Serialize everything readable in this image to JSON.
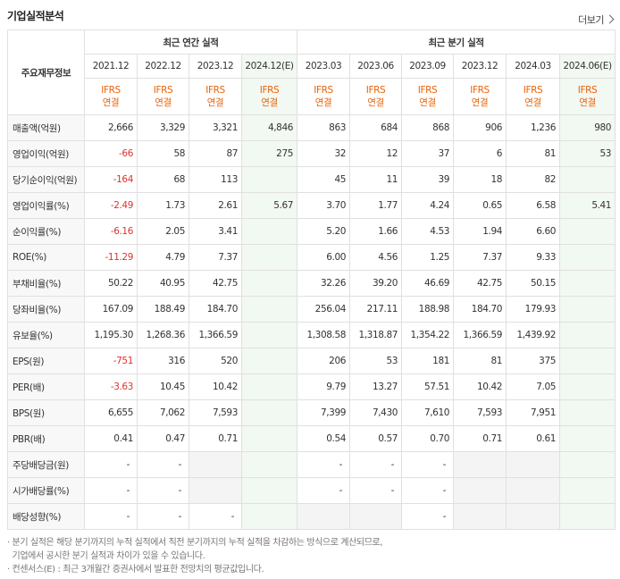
{
  "section_title": "기업실적분석",
  "more_link": "더보기",
  "row_header_label": "주요재무정보",
  "groups": {
    "annual": "최근 연간 실적",
    "quarterly": "최근 분기 실적"
  },
  "periods": [
    "2021.12",
    "2022.12",
    "2023.12",
    "2024.12(E)",
    "2023.03",
    "2023.06",
    "2023.09",
    "2023.12",
    "2024.03",
    "2024.06(E)"
  ],
  "ifrs_line1": "IFRS",
  "ifrs_line2": "연결",
  "rows": [
    {
      "label": "매출액(억원)",
      "values": [
        "2,666",
        "3,329",
        "3,321",
        "4,846",
        "863",
        "684",
        "868",
        "906",
        "1,236",
        "980"
      ]
    },
    {
      "label": "영업이익(억원)",
      "values": [
        "-66",
        "58",
        "87",
        "275",
        "32",
        "12",
        "37",
        "6",
        "81",
        "53"
      ]
    },
    {
      "label": "당기순이익(억원)",
      "values": [
        "-164",
        "68",
        "113",
        "",
        "45",
        "11",
        "39",
        "18",
        "82",
        ""
      ]
    },
    {
      "label": "영업이익률(%)",
      "values": [
        "-2.49",
        "1.73",
        "2.61",
        "5.67",
        "3.70",
        "1.77",
        "4.24",
        "0.65",
        "6.58",
        "5.41"
      ]
    },
    {
      "label": "순이익률(%)",
      "values": [
        "-6.16",
        "2.05",
        "3.41",
        "",
        "5.20",
        "1.66",
        "4.53",
        "1.94",
        "6.60",
        ""
      ]
    },
    {
      "label": "ROE(%)",
      "values": [
        "-11.29",
        "4.79",
        "7.37",
        "",
        "6.00",
        "4.56",
        "1.25",
        "7.37",
        "9.33",
        ""
      ]
    },
    {
      "label": "부채비율(%)",
      "values": [
        "50.22",
        "40.95",
        "42.75",
        "",
        "32.26",
        "39.20",
        "46.69",
        "42.75",
        "50.15",
        ""
      ]
    },
    {
      "label": "당좌비율(%)",
      "values": [
        "167.09",
        "188.49",
        "184.70",
        "",
        "256.04",
        "217.11",
        "188.98",
        "184.70",
        "179.93",
        ""
      ]
    },
    {
      "label": "유보율(%)",
      "values": [
        "1,195.30",
        "1,268.36",
        "1,366.59",
        "",
        "1,308.58",
        "1,318.87",
        "1,354.22",
        "1,366.59",
        "1,439.92",
        ""
      ]
    },
    {
      "label": "EPS(원)",
      "values": [
        "-751",
        "316",
        "520",
        "",
        "206",
        "53",
        "181",
        "81",
        "375",
        ""
      ]
    },
    {
      "label": "PER(배)",
      "values": [
        "-3.63",
        "10.45",
        "10.42",
        "",
        "9.79",
        "13.27",
        "57.51",
        "10.42",
        "7.05",
        ""
      ]
    },
    {
      "label": "BPS(원)",
      "values": [
        "6,655",
        "7,062",
        "7,593",
        "",
        "7,399",
        "7,430",
        "7,610",
        "7,593",
        "7,951",
        ""
      ]
    },
    {
      "label": "PBR(배)",
      "values": [
        "0.41",
        "0.47",
        "0.71",
        "",
        "0.54",
        "0.57",
        "0.70",
        "0.71",
        "0.61",
        ""
      ]
    },
    {
      "label": "주당배당금(원)",
      "values": [
        "-",
        "-",
        "",
        "",
        "-",
        "-",
        "-",
        "",
        "",
        ""
      ]
    },
    {
      "label": "시가배당률(%)",
      "values": [
        "-",
        "-",
        "",
        "",
        "-",
        "-",
        "-",
        "",
        "",
        ""
      ]
    },
    {
      "label": "배당성향(%)",
      "values": [
        "-",
        "-",
        "-",
        "",
        "",
        "",
        "-",
        "",
        "",
        ""
      ]
    }
  ],
  "notes": [
    "· 분기 실적은 해당 분기까지의 누적 실적에서 직전 분기까지의 누적 실적을 차감하는 방식으로 계산되므로,",
    "  기업에서 공시한 분기 실적과 차이가 있을 수 있습니다.",
    "· 컨센서스(E) : 최근 3개월간 증권사에서 발표한 전망치의 평균값입니다."
  ],
  "colors": {
    "negative": "#e0322b",
    "ifrs": "#e8630a",
    "estimate_bg": "#f2f8f2"
  }
}
